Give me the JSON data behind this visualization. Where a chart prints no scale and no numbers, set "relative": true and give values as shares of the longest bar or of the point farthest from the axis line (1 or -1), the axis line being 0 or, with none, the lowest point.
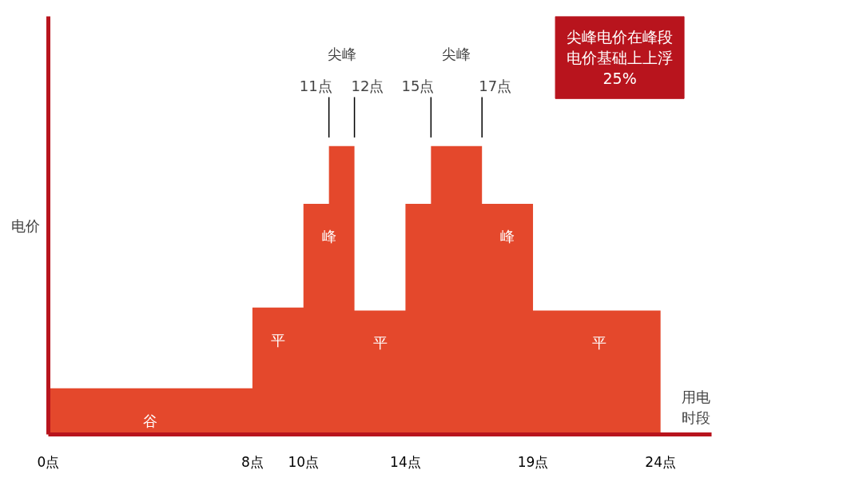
{
  "chart_data": {
    "type": "area",
    "relative": true,
    "x": [
      0,
      8,
      8,
      10,
      10,
      11,
      11,
      12,
      12,
      14,
      14,
      15,
      15,
      17,
      17,
      19,
      19,
      24
    ],
    "values": [
      0.16,
      0.16,
      0.44,
      0.44,
      0.8,
      0.8,
      1.0,
      1.0,
      0.43,
      0.43,
      0.8,
      0.8,
      1.0,
      1.0,
      0.8,
      0.8,
      0.43,
      0.43
    ],
    "color": "#e4482c",
    "xlim": [
      0,
      26
    ],
    "xticks": [
      {
        "value": 0,
        "label": "0点"
      },
      {
        "value": 8,
        "label": "8点"
      },
      {
        "value": 10,
        "label": "10点"
      },
      {
        "value": 14,
        "label": "14点"
      },
      {
        "value": 19,
        "label": "19点"
      },
      {
        "value": 24,
        "label": "24点"
      }
    ],
    "tick_labels": "x",
    "grid": false,
    "xlabel": "用电时段",
    "ylabel": "电价",
    "annotations": [
      {
        "text": "谷",
        "x": 4,
        "y": 0.16
      },
      {
        "text": "平",
        "x": 9,
        "y": 0.44
      },
      {
        "text": "峰",
        "x": 11,
        "y": 0.8
      },
      {
        "text": "平",
        "x": 13,
        "y": 0.43
      },
      {
        "text": "峰",
        "x": 18,
        "y": 0.8
      },
      {
        "text": "平",
        "x": 21.6,
        "y": 0.43
      },
      "尖峰",
      "11点",
      "12点",
      "尖峰",
      "15点",
      "17点",
      "尖峰电价在峰段电价基础上上浮25%"
    ]
  }
}
